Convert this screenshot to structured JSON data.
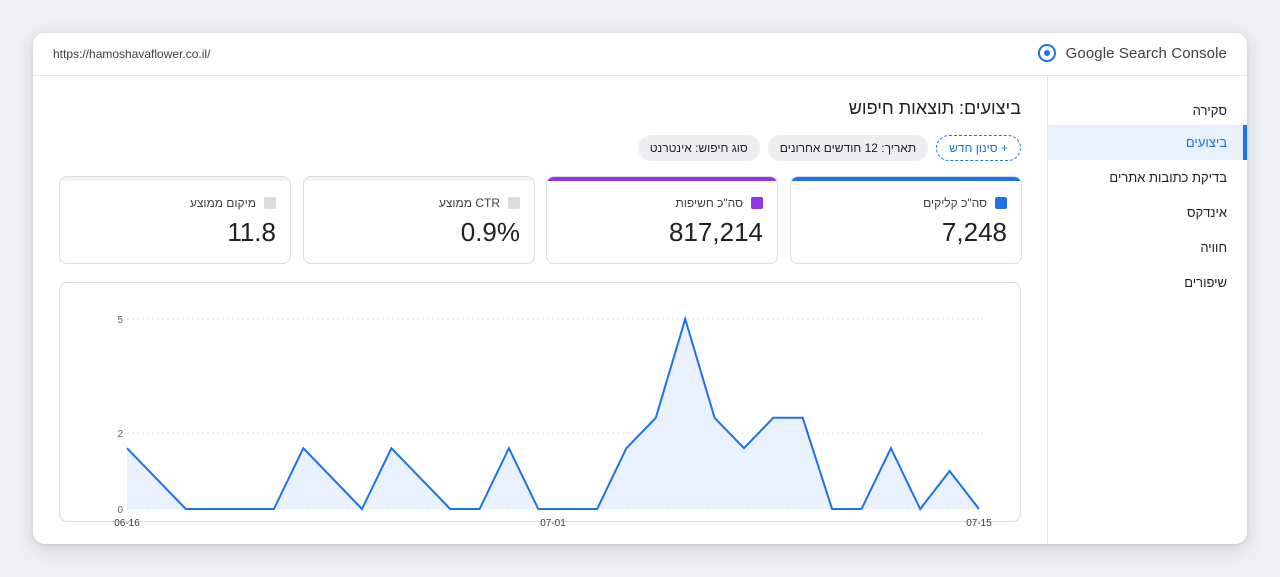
{
  "topbar": {
    "url": "https://hamoshavaflower.co.il/",
    "app_title": "Google Search Console"
  },
  "icons": {
    "brand": "search-console-target-icon"
  },
  "sidebar": {
    "items": [
      {
        "label": "סקירה"
      },
      {
        "label": "ביצועים",
        "active": true
      },
      {
        "label": "בדיקת כתובות אתרים"
      },
      {
        "label": "אינדקס"
      },
      {
        "label": "חוויה"
      },
      {
        "label": "שיפורים"
      }
    ]
  },
  "main": {
    "title": "ביצועים: תוצאות חיפוש",
    "filters": {
      "search_type": "סוג חיפוש: אינטרנט",
      "date": "תאריך: 12 חודשים אחרונים",
      "add_filter": "+ סינון חדש"
    },
    "metrics": {
      "clicks": {
        "label": "סה\"כ קליקים",
        "value": "7,248"
      },
      "impressions": {
        "label": "סה\"כ חשיפות",
        "value": "817,214"
      },
      "ctr": {
        "label": "CTR ממוצע",
        "value": "0.9%"
      },
      "position": {
        "label": "מיקום ממוצע",
        "value": "11.8"
      }
    }
  },
  "colors": {
    "accent": "#1a73e8",
    "impressions": "#9334e6",
    "area_fill": "#e8f0fe"
  },
  "chart_data": {
    "type": "area",
    "series": [
      {
        "values": [
          1.6,
          0.8,
          0,
          0,
          0,
          0,
          1.6,
          0.8,
          0,
          1.6,
          0.8,
          0,
          0,
          1.6,
          0,
          0,
          0,
          1.6,
          2.4,
          5,
          2.4,
          1.6,
          2.4,
          2.4,
          0,
          0,
          1.6,
          0,
          1,
          0
        ]
      }
    ],
    "x_ticks": [
      {
        "label": "06-16",
        "index": 0
      },
      {
        "label": "07-01",
        "index": 14.5
      },
      {
        "label": "07-15",
        "index": 29
      }
    ],
    "y_ticks": [
      {
        "value": 0,
        "label": "0"
      },
      {
        "value": 2,
        "label": "2"
      },
      {
        "value": 5,
        "label": "5"
      }
    ],
    "ylim": [
      0,
      5
    ],
    "grid": true
  }
}
